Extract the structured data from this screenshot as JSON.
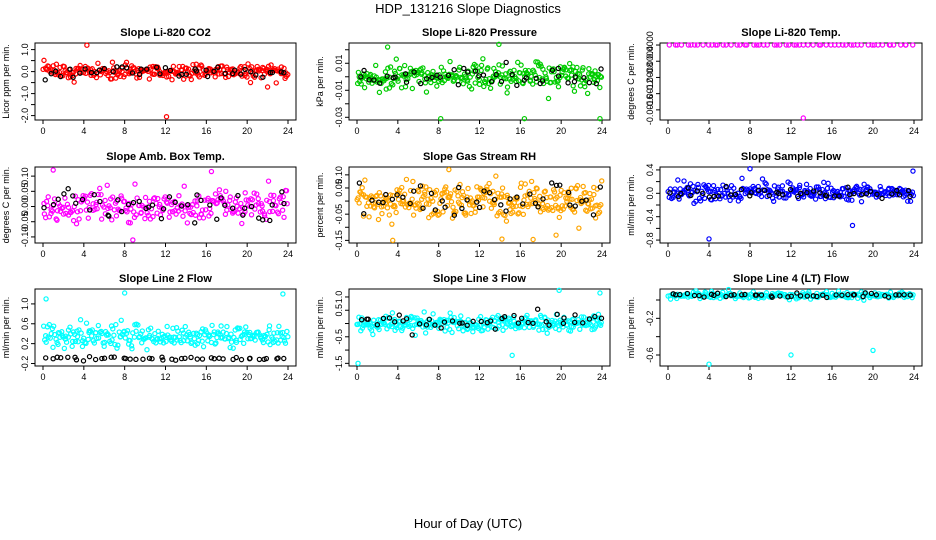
{
  "title": "HDP_131216  Slope Diagnostics",
  "xlabel": "Hour of Day (UTC)",
  "colors": {
    "red": "#ff0000",
    "green": "#00cc00",
    "magenta": "#ff00ff",
    "orange": "#ffa500",
    "blue": "#0000ff",
    "cyan": "#00ffff",
    "black": "#000000"
  },
  "chart_data": [
    {
      "type": "scatter",
      "title": "Slope Li-820 CO2",
      "ylabel": "Licor ppm per min.",
      "xlim": [
        0,
        24
      ],
      "xticks": [
        0,
        4,
        8,
        12,
        16,
        20,
        24
      ],
      "ylim": [
        -2.2,
        1.3
      ],
      "yticks": [
        -2.0,
        -1.5,
        -1.0,
        -0.5,
        0.0,
        0.5,
        1.0
      ],
      "ytick_labels": [
        "-2.0",
        "",
        "-1.0",
        "",
        "0.0",
        "",
        "1.0"
      ],
      "color": "red",
      "primary": {
        "n": 260,
        "center": 0.0,
        "spread": 0.3
      },
      "secondary": {
        "n": 45,
        "center": 0.0,
        "spread": 0.25
      },
      "outliers": [
        [
          4.3,
          1.2
        ],
        [
          12.1,
          -2.05
        ],
        [
          22.0,
          -0.7
        ]
      ]
    },
    {
      "type": "scatter",
      "title": "Slope Li-820 Pressure",
      "ylabel": "kPa per min.",
      "xlim": [
        0,
        24
      ],
      "xticks": [
        0,
        4,
        8,
        12,
        16,
        20,
        24
      ],
      "ylim": [
        -0.032,
        0.025
      ],
      "yticks": [
        -0.03,
        -0.02,
        -0.01,
        0.0,
        0.01,
        0.02
      ],
      "ytick_labels": [
        "-0.03",
        "",
        "-0.01",
        "",
        "0.01",
        ""
      ],
      "color": "green",
      "primary": {
        "n": 280,
        "center": 0.0,
        "spread": 0.008
      },
      "secondary": {
        "n": 45,
        "center": 0.0,
        "spread": 0.007
      },
      "outliers": [
        [
          3.0,
          0.022
        ],
        [
          13.9,
          0.024
        ],
        [
          8.2,
          -0.031
        ],
        [
          16.4,
          -0.031
        ],
        [
          23.8,
          -0.031
        ]
      ]
    },
    {
      "type": "scatter",
      "title": "Slope Li-820 Temp.",
      "ylabel": "degrees C per min.",
      "xlim": [
        0,
        24
      ],
      "xticks": [
        0,
        4,
        8,
        12,
        16,
        20,
        24
      ],
      "ylim": [
        -0.00185,
        5e-05
      ],
      "yticks": [
        -0.0016,
        -0.0012,
        -0.0008,
        -0.0004,
        0.0
      ],
      "ytick_labels": [
        "-0.0016",
        "-0.0012",
        "-0.0008",
        "-0.0004",
        "0.0000"
      ],
      "color": "magenta",
      "primary": {
        "n": 60,
        "center": 0.0,
        "spread": 0.0
      },
      "secondary": {
        "n": 0,
        "center": 0.0,
        "spread": 0.0
      },
      "outliers": [
        [
          13.2,
          -0.0018
        ]
      ]
    },
    {
      "type": "scatter",
      "title": "Slope Amb. Box Temp.",
      "ylabel": "degrees C per min.",
      "xlim": [
        0,
        24
      ],
      "xticks": [
        0,
        4,
        8,
        12,
        16,
        20,
        24
      ],
      "ylim": [
        -0.12,
        0.13
      ],
      "yticks": [
        -0.1,
        -0.05,
        0.0,
        0.05,
        0.1
      ],
      "ytick_labels": [
        "-0.10",
        "-0.05",
        "0.00",
        "0.05",
        "0.10"
      ],
      "color": "magenta",
      "primary": {
        "n": 240,
        "center": 0.0,
        "spread": 0.045
      },
      "secondary": {
        "n": 45,
        "center": 0.0,
        "spread": 0.04
      },
      "outliers": [
        [
          1.0,
          0.12
        ],
        [
          8.8,
          -0.11
        ],
        [
          16.5,
          0.115
        ]
      ]
    },
    {
      "type": "scatter",
      "title": "Slope Gas Stream RH",
      "ylabel": "percent per min.",
      "xlim": [
        0,
        24
      ],
      "xticks": [
        0,
        4,
        8,
        12,
        16,
        20,
        24
      ],
      "ylim": [
        -0.16,
        0.13
      ],
      "yticks": [
        -0.15,
        -0.1,
        -0.05,
        0.0,
        0.05,
        0.1
      ],
      "ytick_labels": [
        "-0.15",
        "",
        "-0.05",
        "",
        "0.05",
        "0.10"
      ],
      "color": "orange",
      "primary": {
        "n": 300,
        "center": 0.0,
        "spread": 0.055
      },
      "secondary": {
        "n": 45,
        "center": 0.0,
        "spread": 0.05
      },
      "outliers": [
        [
          3.5,
          -0.15
        ],
        [
          9.0,
          0.12
        ],
        [
          14.2,
          -0.145
        ],
        [
          19.5,
          -0.13
        ]
      ]
    },
    {
      "type": "scatter",
      "title": "Slope Sample Flow",
      "ylabel": "ml/min per min.",
      "xlim": [
        0,
        24
      ],
      "xticks": [
        0,
        4,
        8,
        12,
        16,
        20,
        24
      ],
      "ylim": [
        -0.85,
        0.45
      ],
      "yticks": [
        -0.8,
        -0.6,
        -0.4,
        -0.2,
        0.0,
        0.2,
        0.4
      ],
      "ytick_labels": [
        "-0.8",
        "",
        "-0.4",
        "",
        "0.0",
        "",
        "0.4"
      ],
      "color": "blue",
      "primary": {
        "n": 260,
        "center": 0.02,
        "spread": 0.12
      },
      "secondary": {
        "n": 45,
        "center": 0.0,
        "spread": 0.08
      },
      "outliers": [
        [
          4.0,
          -0.78
        ],
        [
          8.0,
          0.42
        ],
        [
          18.0,
          -0.55
        ],
        [
          23.9,
          0.38
        ]
      ]
    },
    {
      "type": "scatter",
      "title": "Slope Line 2 Flow",
      "ylabel": "ml/min per min.",
      "xlim": [
        0,
        24
      ],
      "xticks": [
        0,
        4,
        8,
        12,
        16,
        20,
        24
      ],
      "ylim": [
        -0.25,
        1.3
      ],
      "yticks": [
        -0.2,
        0.2,
        0.6,
        1.0
      ],
      "ytick_labels": [
        "-0.2",
        "0.2",
        "0.6",
        "1.0"
      ],
      "color": "cyan",
      "primary": {
        "n": 260,
        "center": 0.35,
        "spread": 0.2
      },
      "secondary": {
        "n": 45,
        "center": -0.1,
        "spread": 0.03
      },
      "outliers": [
        [
          0.3,
          1.1
        ],
        [
          8.0,
          1.22
        ],
        [
          23.5,
          1.2
        ]
      ]
    },
    {
      "type": "scatter",
      "title": "Slope Line 3 Flow",
      "ylabel": "ml/min per min.",
      "xlim": [
        0,
        24
      ],
      "xticks": [
        0,
        4,
        8,
        12,
        16,
        20,
        24
      ],
      "ylim": [
        -1.6,
        1.3
      ],
      "yticks": [
        -1.5,
        -1.0,
        -0.5,
        0.0,
        0.5,
        1.0
      ],
      "ytick_labels": [
        "-1.5",
        "",
        "-0.5",
        "",
        "0.5",
        "1.0"
      ],
      "color": "cyan",
      "primary": {
        "n": 300,
        "center": 0.0,
        "spread": 0.25
      },
      "secondary": {
        "n": 45,
        "center": 0.1,
        "spread": 0.25
      },
      "outliers": [
        [
          0.1,
          -1.5
        ],
        [
          15.2,
          -1.2
        ],
        [
          19.8,
          1.25
        ],
        [
          23.8,
          1.15
        ]
      ]
    },
    {
      "type": "scatter",
      "title": "Slope Line 4 (LT) Flow",
      "ylabel": "ml/min per min.",
      "xlim": [
        0,
        24
      ],
      "xticks": [
        0,
        4,
        8,
        12,
        16,
        20,
        24
      ],
      "ylim": [
        -0.72,
        0.12
      ],
      "yticks": [
        -0.6,
        -0.4,
        -0.2,
        0.0
      ],
      "ytick_labels": [
        "-0.6",
        "",
        "-0.2",
        ""
      ],
      "color": "cyan",
      "primary": {
        "n": 220,
        "center": 0.05,
        "spread": 0.03
      },
      "secondary": {
        "n": 45,
        "center": 0.05,
        "spread": 0.02
      },
      "outliers": [
        [
          4.0,
          -0.7
        ],
        [
          12.0,
          -0.6
        ],
        [
          20.0,
          -0.55
        ]
      ]
    }
  ]
}
